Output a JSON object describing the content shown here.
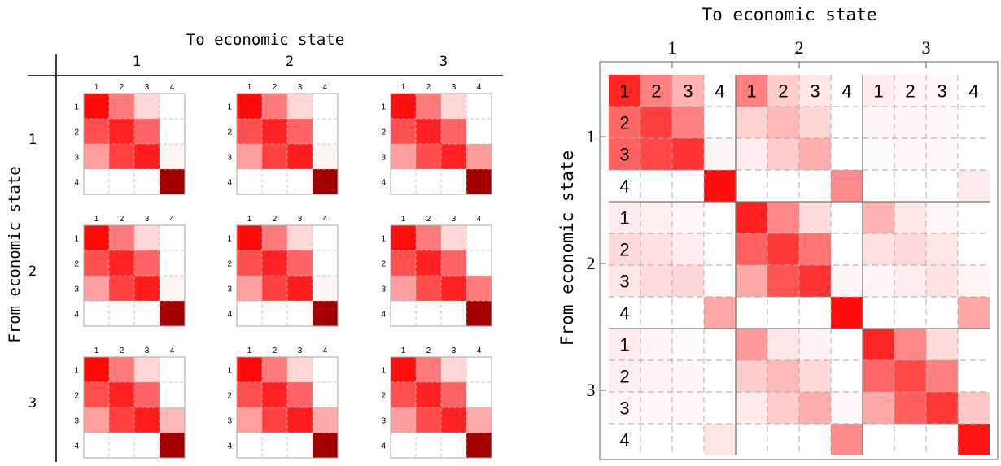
{
  "chart_data": [
    {
      "type": "heatmap",
      "panel": "left-grid",
      "xlabel": "To economic state",
      "ylabel": "From economic state",
      "outer_states": [
        "1",
        "2",
        "3"
      ],
      "inner_states": [
        "1",
        "2",
        "3",
        "4"
      ],
      "color_scale": {
        "low": "#ffffff",
        "mid": "#ff0000",
        "high": "#a00000"
      },
      "cells": [
        [
          [
            [
              0.87,
              0.47,
              0.14,
              0.0
            ],
            [
              0.62,
              0.78,
              0.55,
              0.0
            ],
            [
              0.34,
              0.67,
              0.8,
              0.04
            ],
            [
              0.0,
              0.0,
              0.0,
              1.0
            ]
          ],
          [
            [
              0.87,
              0.47,
              0.14,
              0.0
            ],
            [
              0.62,
              0.78,
              0.55,
              0.0
            ],
            [
              0.34,
              0.67,
              0.8,
              0.04
            ],
            [
              0.0,
              0.0,
              0.0,
              1.0
            ]
          ],
          [
            [
              0.85,
              0.47,
              0.14,
              0.0
            ],
            [
              0.62,
              0.78,
              0.55,
              0.0
            ],
            [
              0.34,
              0.63,
              0.78,
              0.35
            ],
            [
              0.0,
              0.0,
              0.0,
              1.0
            ]
          ]
        ],
        [
          [
            [
              0.87,
              0.47,
              0.14,
              0.0
            ],
            [
              0.62,
              0.78,
              0.55,
              0.0
            ],
            [
              0.34,
              0.67,
              0.8,
              0.04
            ],
            [
              0.0,
              0.0,
              0.0,
              1.0
            ]
          ],
          [
            [
              0.87,
              0.47,
              0.14,
              0.0
            ],
            [
              0.62,
              0.78,
              0.55,
              0.0
            ],
            [
              0.34,
              0.67,
              0.8,
              0.04
            ],
            [
              0.0,
              0.0,
              0.0,
              1.0
            ]
          ],
          [
            [
              0.85,
              0.47,
              0.14,
              0.0
            ],
            [
              0.62,
              0.78,
              0.55,
              0.0
            ],
            [
              0.34,
              0.63,
              0.78,
              0.47
            ],
            [
              0.0,
              0.0,
              0.0,
              1.0
            ]
          ]
        ],
        [
          [
            [
              0.87,
              0.47,
              0.14,
              0.0
            ],
            [
              0.62,
              0.78,
              0.55,
              0.0
            ],
            [
              0.34,
              0.67,
              0.8,
              0.25
            ],
            [
              0.0,
              0.0,
              0.0,
              1.0
            ]
          ],
          [
            [
              0.87,
              0.47,
              0.14,
              0.0
            ],
            [
              0.62,
              0.78,
              0.55,
              0.0
            ],
            [
              0.34,
              0.67,
              0.8,
              0.3
            ],
            [
              0.0,
              0.0,
              0.0,
              1.0
            ]
          ],
          [
            [
              0.85,
              0.47,
              0.14,
              0.0
            ],
            [
              0.62,
              0.78,
              0.55,
              0.0
            ],
            [
              0.34,
              0.63,
              0.78,
              0.3
            ],
            [
              0.0,
              0.0,
              0.0,
              1.0
            ]
          ]
        ]
      ]
    },
    {
      "type": "heatmap",
      "panel": "right-matrix",
      "xlabel": "To economic state",
      "ylabel": "From economic state",
      "outer_states": [
        "1",
        "2",
        "3"
      ],
      "inner_states": [
        "1",
        "2",
        "3",
        "4"
      ],
      "color_scale": {
        "low": "#ffffff",
        "high": "#ff0000"
      },
      "matrix": [
        [
          0.85,
          0.5,
          0.3,
          0.0,
          0.5,
          0.2,
          0.1,
          0.0,
          0.07,
          0.04,
          0.03,
          0.0
        ],
        [
          0.6,
          0.75,
          0.5,
          0.0,
          0.18,
          0.28,
          0.16,
          0.0,
          0.04,
          0.04,
          0.03,
          0.0
        ],
        [
          0.62,
          0.72,
          0.8,
          0.04,
          0.07,
          0.2,
          0.32,
          0.0,
          0.02,
          0.03,
          0.03,
          0.0
        ],
        [
          0.0,
          0.0,
          0.0,
          0.95,
          0.0,
          0.0,
          0.0,
          0.45,
          0.0,
          0.0,
          0.0,
          0.08
        ],
        [
          0.08,
          0.06,
          0.03,
          0.0,
          0.87,
          0.47,
          0.14,
          0.0,
          0.3,
          0.1,
          0.03,
          0.0
        ],
        [
          0.15,
          0.12,
          0.07,
          0.0,
          0.62,
          0.78,
          0.55,
          0.0,
          0.12,
          0.15,
          0.1,
          0.0
        ],
        [
          0.1,
          0.14,
          0.16,
          0.0,
          0.34,
          0.67,
          0.8,
          0.04,
          0.04,
          0.07,
          0.11,
          0.04
        ],
        [
          0.0,
          0.0,
          0.0,
          0.35,
          0.0,
          0.0,
          0.0,
          0.95,
          0.0,
          0.0,
          0.0,
          0.35
        ],
        [
          0.08,
          0.04,
          0.02,
          0.0,
          0.4,
          0.1,
          0.05,
          0.0,
          0.85,
          0.47,
          0.14,
          0.0
        ],
        [
          0.06,
          0.05,
          0.04,
          0.0,
          0.2,
          0.28,
          0.15,
          0.0,
          0.6,
          0.72,
          0.5,
          0.0
        ],
        [
          0.03,
          0.03,
          0.03,
          0.0,
          0.08,
          0.2,
          0.32,
          0.03,
          0.34,
          0.63,
          0.78,
          0.22
        ],
        [
          0.0,
          0.0,
          0.0,
          0.1,
          0.0,
          0.0,
          0.0,
          0.45,
          0.0,
          0.0,
          0.0,
          0.92
        ]
      ]
    }
  ]
}
